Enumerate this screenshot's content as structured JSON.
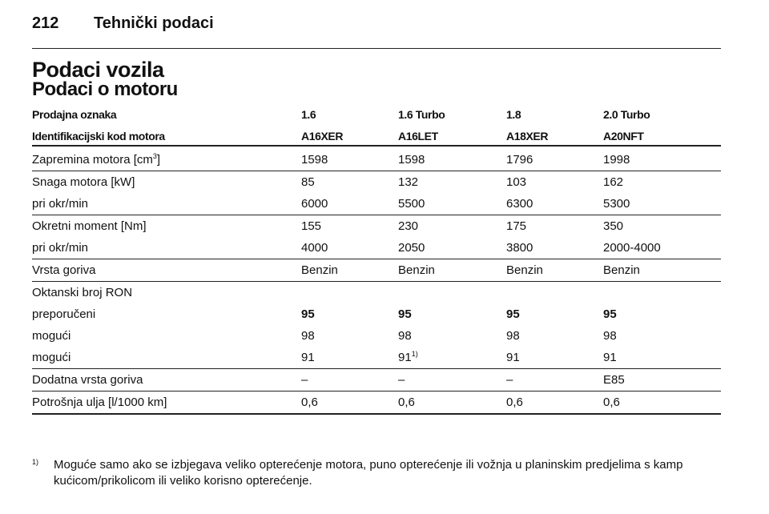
{
  "header": {
    "page": "212",
    "title": "Tehnički podaci"
  },
  "section": {
    "title": "Podaci vozila",
    "subtitle": "Podaci o motoru"
  },
  "table": {
    "header": [
      "Prodajna oznaka",
      "1.6",
      "1.6 Turbo",
      "1.8",
      "2.0 Turbo"
    ],
    "codes": [
      "Identifikacijski kod motora",
      "A16XER",
      "A16LET",
      "A18XER",
      "A20NFT"
    ],
    "groups": [
      [
        {
          "label": "Zapremina motora [cm",
          "label_sup": "3",
          "label_end": "]",
          "values": [
            "1598",
            "1598",
            "1796",
            "1998"
          ]
        }
      ],
      [
        {
          "label": "Snaga motora [kW]",
          "values": [
            "85",
            "132",
            "103",
            "162"
          ]
        },
        {
          "label": "pri okr/min",
          "values": [
            "6000",
            "5500",
            "6300",
            "5300"
          ]
        }
      ],
      [
        {
          "label": "Okretni moment [Nm]",
          "values": [
            "155",
            "230",
            "175",
            "350"
          ]
        },
        {
          "label": "pri okr/min",
          "values": [
            "4000",
            "2050",
            "3800",
            "2000-4000"
          ]
        }
      ],
      [
        {
          "label": "Vrsta goriva",
          "values": [
            "Benzin",
            "Benzin",
            "Benzin",
            "Benzin"
          ]
        }
      ],
      [
        {
          "label": "Oktanski broj RON",
          "values": []
        },
        {
          "label": "preporučeni",
          "bold": true,
          "values": [
            "95",
            "95",
            "95",
            "95"
          ]
        },
        {
          "label": "mogući",
          "values": [
            "98",
            "98",
            "98",
            "98"
          ]
        },
        {
          "label": "mogući",
          "values": [
            "91",
            "91",
            "91",
            "91"
          ],
          "notes": [
            null,
            "1)",
            null,
            null
          ]
        }
      ],
      [
        {
          "label": "Dodatna vrsta goriva",
          "values": [
            "–",
            "–",
            "–",
            "E85"
          ]
        }
      ],
      [
        {
          "label": "Potrošnja ulja [l/1000 km]",
          "values": [
            "0,6",
            "0,6",
            "0,6",
            "0,6"
          ]
        }
      ]
    ]
  },
  "footnote": {
    "mark": "1)",
    "text": "Moguće samo ako se izbjegava veliko opterećenje motora, puno opterećenje ili vožnja u planinskim predjelima s kamp kućicom/prikolicom ili veliko korisno opterećenje."
  }
}
